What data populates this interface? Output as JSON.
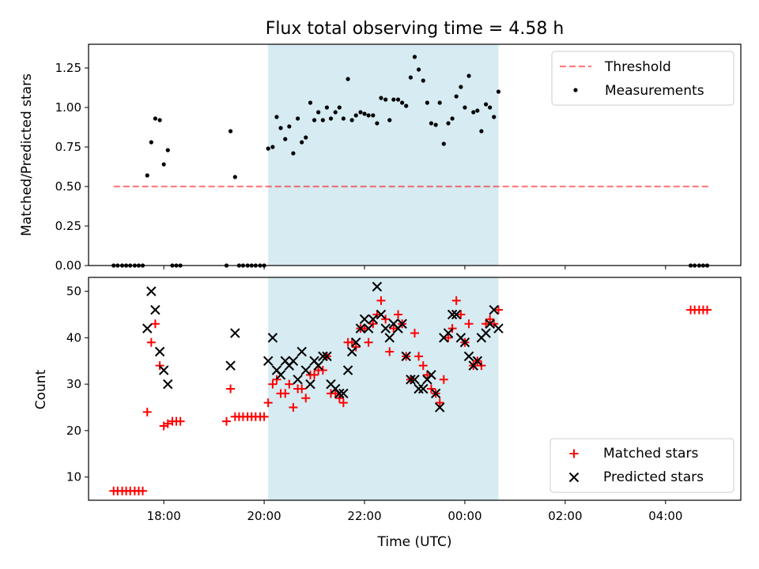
{
  "chart_data": [
    {
      "type": "scatter",
      "title": "Flux total observing time = 4.58 h",
      "ylabel": "Matched/Predicted stars",
      "xlabel": "",
      "xlim": [
        16.5,
        29.5
      ],
      "ylim": [
        0,
        1.4
      ],
      "yticks": [
        0,
        0.25,
        0.5,
        0.75,
        1.0,
        1.25
      ],
      "ytick_labels": [
        "0.00",
        "0.25",
        "0.50",
        "0.75",
        "1.00",
        "1.25"
      ],
      "shaded_span": [
        20.08,
        24.67
      ],
      "shaded_color": "#add8e6",
      "threshold": {
        "name": "Threshold",
        "value": 0.5,
        "x_range": [
          17.0,
          28.9
        ],
        "color": "#ff0000",
        "alpha": 0.5
      },
      "series": [
        {
          "name": "Measurements",
          "color": "#000000",
          "marker": "dot",
          "points": [
            [
              17.0,
              0
            ],
            [
              17.08,
              0
            ],
            [
              17.17,
              0
            ],
            [
              17.25,
              0
            ],
            [
              17.33,
              0
            ],
            [
              17.42,
              0
            ],
            [
              17.5,
              0
            ],
            [
              17.58,
              0
            ],
            [
              17.67,
              0.57
            ],
            [
              17.75,
              0.78
            ],
            [
              17.83,
              0.93
            ],
            [
              17.92,
              0.92
            ],
            [
              18.0,
              0.64
            ],
            [
              18.08,
              0.73
            ],
            [
              18.17,
              0
            ],
            [
              18.25,
              0
            ],
            [
              18.33,
              0
            ],
            [
              19.25,
              0
            ],
            [
              19.33,
              0.85
            ],
            [
              19.42,
              0.56
            ],
            [
              19.5,
              0
            ],
            [
              19.58,
              0
            ],
            [
              19.67,
              0
            ],
            [
              19.75,
              0
            ],
            [
              19.83,
              0
            ],
            [
              19.92,
              0
            ],
            [
              20.0,
              0
            ],
            [
              20.08,
              0.74
            ],
            [
              20.17,
              0.75
            ],
            [
              20.25,
              0.94
            ],
            [
              20.33,
              0.87
            ],
            [
              20.42,
              0.8
            ],
            [
              20.5,
              0.88
            ],
            [
              20.58,
              0.71
            ],
            [
              20.67,
              0.93
            ],
            [
              20.75,
              0.78
            ],
            [
              20.83,
              0.81
            ],
            [
              20.92,
              1.03
            ],
            [
              21.0,
              0.92
            ],
            [
              21.08,
              0.97
            ],
            [
              21.17,
              0.92
            ],
            [
              21.25,
              1.0
            ],
            [
              21.33,
              0.93
            ],
            [
              21.42,
              0.97
            ],
            [
              21.5,
              1.0
            ],
            [
              21.58,
              0.93
            ],
            [
              21.67,
              1.18
            ],
            [
              21.75,
              0.92
            ],
            [
              21.83,
              0.95
            ],
            [
              21.92,
              0.97
            ],
            [
              22.0,
              0.96
            ],
            [
              22.08,
              0.95
            ],
            [
              22.17,
              0.95
            ],
            [
              22.25,
              0.9
            ],
            [
              22.33,
              1.06
            ],
            [
              22.42,
              1.05
            ],
            [
              22.5,
              0.92
            ],
            [
              22.58,
              1.05
            ],
            [
              22.67,
              1.05
            ],
            [
              22.75,
              1.03
            ],
            [
              22.83,
              1.01
            ],
            [
              22.92,
              1.19
            ],
            [
              23.0,
              1.32
            ],
            [
              23.08,
              1.24
            ],
            [
              23.17,
              1.17
            ],
            [
              23.25,
              1.03
            ],
            [
              23.33,
              0.9
            ],
            [
              23.42,
              0.89
            ],
            [
              23.5,
              1.03
            ],
            [
              23.58,
              0.77
            ],
            [
              23.67,
              0.9
            ],
            [
              23.75,
              0.93
            ],
            [
              23.83,
              1.07
            ],
            [
              23.92,
              1.13
            ],
            [
              24.0,
              1.0
            ],
            [
              24.08,
              1.2
            ],
            [
              24.17,
              0.97
            ],
            [
              24.25,
              0.98
            ],
            [
              24.33,
              0.85
            ],
            [
              24.42,
              1.02
            ],
            [
              24.5,
              1.0
            ],
            [
              24.58,
              0.94
            ],
            [
              24.67,
              1.1
            ],
            [
              28.5,
              0
            ],
            [
              28.58,
              0
            ],
            [
              28.67,
              0
            ],
            [
              28.75,
              0
            ],
            [
              28.83,
              0
            ]
          ]
        }
      ],
      "legend": {
        "position": "top-right",
        "entries": [
          "Threshold",
          "Measurements"
        ]
      }
    },
    {
      "type": "scatter",
      "title": "",
      "ylabel": "Count",
      "xlabel": "Time (UTC)",
      "xlim": [
        16.5,
        29.5
      ],
      "ylim": [
        5,
        53
      ],
      "yticks": [
        10,
        20,
        30,
        40,
        50
      ],
      "ytick_labels": [
        "10",
        "20",
        "30",
        "40",
        "50"
      ],
      "xticks": [
        18,
        20,
        22,
        24,
        26,
        28
      ],
      "xtick_labels": [
        "18:00",
        "20:00",
        "22:00",
        "00:00",
        "02:00",
        "04:00"
      ],
      "shaded_span": [
        20.08,
        24.67
      ],
      "shaded_color": "#add8e6",
      "series": [
        {
          "name": "Matched stars",
          "color": "#ff0000",
          "marker": "plus",
          "points": [
            [
              17.0,
              7
            ],
            [
              17.08,
              7
            ],
            [
              17.17,
              7
            ],
            [
              17.25,
              7
            ],
            [
              17.33,
              7
            ],
            [
              17.42,
              7
            ],
            [
              17.5,
              7
            ],
            [
              17.58,
              7
            ],
            [
              17.67,
              24
            ],
            [
              17.75,
              39
            ],
            [
              17.83,
              43
            ],
            [
              17.92,
              34
            ],
            [
              18.0,
              21
            ],
            [
              18.08,
              21.5
            ],
            [
              18.17,
              22
            ],
            [
              18.25,
              22
            ],
            [
              18.33,
              22
            ],
            [
              19.25,
              22
            ],
            [
              19.33,
              29
            ],
            [
              19.42,
              23
            ],
            [
              19.5,
              23
            ],
            [
              19.58,
              23
            ],
            [
              19.67,
              23
            ],
            [
              19.75,
              23
            ],
            [
              19.83,
              23
            ],
            [
              19.92,
              23
            ],
            [
              20.0,
              23
            ],
            [
              20.08,
              26
            ],
            [
              20.17,
              30
            ],
            [
              20.25,
              31
            ],
            [
              20.33,
              28
            ],
            [
              20.42,
              28
            ],
            [
              20.5,
              30
            ],
            [
              20.58,
              25
            ],
            [
              20.67,
              29
            ],
            [
              20.75,
              29
            ],
            [
              20.83,
              27
            ],
            [
              20.92,
              32
            ],
            [
              21.0,
              32
            ],
            [
              21.08,
              33
            ],
            [
              21.17,
              33
            ],
            [
              21.25,
              36
            ],
            [
              21.33,
              28
            ],
            [
              21.42,
              28
            ],
            [
              21.5,
              27
            ],
            [
              21.58,
              26
            ],
            [
              21.67,
              39
            ],
            [
              21.75,
              39
            ],
            [
              21.83,
              38
            ],
            [
              21.92,
              42
            ],
            [
              22.0,
              42
            ],
            [
              22.08,
              39
            ],
            [
              22.17,
              43
            ],
            [
              22.25,
              45
            ],
            [
              22.33,
              48
            ],
            [
              22.42,
              44
            ],
            [
              22.5,
              37
            ],
            [
              22.58,
              42
            ],
            [
              22.67,
              45
            ],
            [
              22.75,
              43
            ],
            [
              22.83,
              36
            ],
            [
              22.92,
              31
            ],
            [
              23.0,
              41
            ],
            [
              23.08,
              36
            ],
            [
              23.17,
              34
            ],
            [
              23.25,
              32
            ],
            [
              23.33,
              29
            ],
            [
              23.42,
              28
            ],
            [
              23.5,
              26
            ],
            [
              23.58,
              31
            ],
            [
              23.67,
              40
            ],
            [
              23.75,
              42
            ],
            [
              23.83,
              48
            ],
            [
              23.92,
              45
            ],
            [
              24.0,
              39
            ],
            [
              24.08,
              43
            ],
            [
              24.17,
              34
            ],
            [
              24.25,
              35
            ],
            [
              24.33,
              34
            ],
            [
              24.42,
              43
            ],
            [
              24.5,
              44
            ],
            [
              24.58,
              43
            ],
            [
              24.67,
              46
            ],
            [
              28.5,
              46
            ],
            [
              28.58,
              46
            ],
            [
              28.67,
              46
            ],
            [
              28.75,
              46
            ],
            [
              28.83,
              46
            ]
          ]
        },
        {
          "name": "Predicted stars",
          "color": "#000000",
          "marker": "x",
          "points": [
            [
              17.67,
              42
            ],
            [
              17.75,
              50
            ],
            [
              17.83,
              46
            ],
            [
              17.92,
              37
            ],
            [
              18.0,
              33
            ],
            [
              18.08,
              30
            ],
            [
              19.33,
              34
            ],
            [
              19.42,
              41
            ],
            [
              20.08,
              35
            ],
            [
              20.17,
              40
            ],
            [
              20.25,
              33
            ],
            [
              20.33,
              32
            ],
            [
              20.42,
              35
            ],
            [
              20.5,
              34
            ],
            [
              20.58,
              35
            ],
            [
              20.67,
              31
            ],
            [
              20.75,
              37
            ],
            [
              20.83,
              33
            ],
            [
              20.92,
              30
            ],
            [
              21.0,
              35
            ],
            [
              21.08,
              34
            ],
            [
              21.17,
              36
            ],
            [
              21.25,
              36
            ],
            [
              21.33,
              30
            ],
            [
              21.42,
              29
            ],
            [
              21.5,
              28
            ],
            [
              21.58,
              28
            ],
            [
              21.67,
              33
            ],
            [
              21.75,
              37
            ],
            [
              21.83,
              39
            ],
            [
              21.92,
              42
            ],
            [
              22.0,
              44
            ],
            [
              22.08,
              42
            ],
            [
              22.17,
              44
            ],
            [
              22.25,
              51
            ],
            [
              22.33,
              45
            ],
            [
              22.42,
              42
            ],
            [
              22.5,
              40
            ],
            [
              22.58,
              43
            ],
            [
              22.67,
              42
            ],
            [
              22.75,
              43
            ],
            [
              22.83,
              36
            ],
            [
              22.92,
              31
            ],
            [
              23.0,
              31
            ],
            [
              23.08,
              29
            ],
            [
              23.17,
              29
            ],
            [
              23.25,
              31
            ],
            [
              23.33,
              32
            ],
            [
              23.42,
              28
            ],
            [
              23.5,
              25
            ],
            [
              23.58,
              40
            ],
            [
              23.67,
              41
            ],
            [
              23.75,
              45
            ],
            [
              23.83,
              45
            ],
            [
              23.92,
              40
            ],
            [
              24.0,
              39
            ],
            [
              24.08,
              36
            ],
            [
              24.17,
              34
            ],
            [
              24.25,
              35
            ],
            [
              24.33,
              40
            ],
            [
              24.42,
              41
            ],
            [
              24.5,
              43
            ],
            [
              24.58,
              46
            ],
            [
              24.67,
              42
            ]
          ]
        }
      ],
      "legend": {
        "position": "bottom-right",
        "entries": [
          "Matched stars",
          "Predicted stars"
        ]
      }
    }
  ]
}
